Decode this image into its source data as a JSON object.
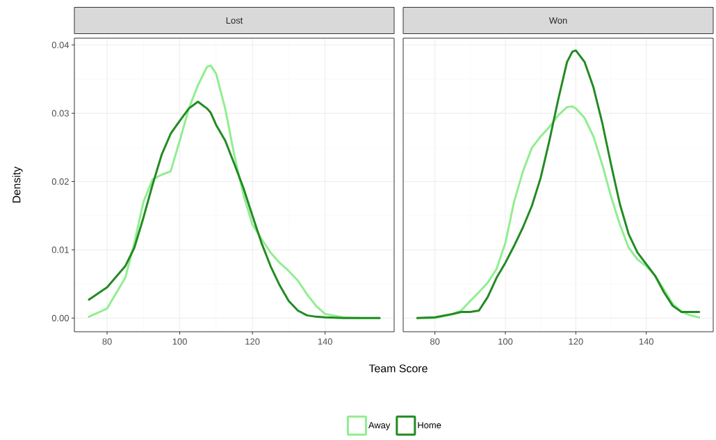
{
  "chart_data": [
    {
      "type": "line",
      "title": "Lost",
      "xlabel": "Team Score",
      "ylabel": "Density",
      "xlim": [
        71,
        159
      ],
      "ylim": [
        -0.002,
        0.041
      ],
      "xticks": [
        80,
        100,
        120,
        140
      ],
      "yticks": [
        {
          "value": 0,
          "label": "0.00"
        },
        {
          "value": 0.01,
          "label": "0.01"
        },
        {
          "value": 0.02,
          "label": "0.02"
        },
        {
          "value": 0.03,
          "label": "0.03"
        },
        {
          "value": 0.04,
          "label": "0.04"
        }
      ],
      "grid": true,
      "legend": "bottom",
      "line_style": "solid",
      "marker": "none",
      "x": [
        75,
        80,
        85,
        87.5,
        90,
        92.5,
        95,
        97.5,
        100,
        102.5,
        105,
        107.5,
        108.5,
        110,
        112.5,
        115,
        117.5,
        120,
        122.5,
        125,
        127.5,
        130,
        132.5,
        135,
        137.5,
        140,
        145,
        150,
        155
      ],
      "series": [
        {
          "name": "Away",
          "color": "#90ee90",
          "values": [
            0.0002,
            0.0014,
            0.0059,
            0.011,
            0.017,
            0.0203,
            0.021,
            0.0215,
            0.026,
            0.0307,
            0.0341,
            0.0368,
            0.037,
            0.0358,
            0.0307,
            0.0239,
            0.0181,
            0.0137,
            0.0116,
            0.0096,
            0.0081,
            0.0069,
            0.0055,
            0.0035,
            0.0018,
            0.0006,
            0.0001,
            0,
            0
          ]
        },
        {
          "name": "Home",
          "color": "#228b22",
          "values": [
            0.0027,
            0.0045,
            0.0076,
            0.0103,
            0.0147,
            0.0195,
            0.0239,
            0.027,
            0.0289,
            0.0307,
            0.0317,
            0.0307,
            0.0301,
            0.0283,
            0.026,
            0.0226,
            0.0191,
            0.015,
            0.011,
            0.0076,
            0.0048,
            0.0025,
            0.0011,
            0.0004,
            0.0002,
            0.0001,
            0,
            0,
            0
          ]
        }
      ]
    },
    {
      "type": "line",
      "title": "Won",
      "xlim": [
        71,
        159
      ],
      "ylim": [
        -0.002,
        0.041
      ],
      "xticks": [
        80,
        100,
        120,
        140
      ],
      "yticks": [
        0,
        0.01,
        0.02,
        0.03,
        0.04
      ],
      "tick_labels": "x",
      "grid": true,
      "line_style": "solid",
      "marker": "none",
      "x": [
        75,
        80,
        85,
        87.5,
        90,
        92.5,
        95,
        97.5,
        100,
        102.5,
        105,
        107.5,
        110,
        112.5,
        115,
        117.5,
        119,
        120,
        122.5,
        125,
        127.5,
        130,
        132.5,
        135,
        137.5,
        140,
        142.5,
        145,
        147.5,
        150,
        152.5,
        155
      ],
      "series": [
        {
          "color": "#90ee90",
          "values": [
            0,
            0,
            0.0006,
            0.0011,
            0.0025,
            0.0038,
            0.0052,
            0.0072,
            0.011,
            0.0171,
            0.0215,
            0.0249,
            0.0266,
            0.028,
            0.0297,
            0.0309,
            0.031,
            0.0307,
            0.0293,
            0.0266,
            0.0225,
            0.0178,
            0.0137,
            0.0103,
            0.0086,
            0.0076,
            0.0062,
            0.0042,
            0.0021,
            0.0009,
            0.0004,
            0.0001
          ]
        },
        {
          "color": "#228b22",
          "values": [
            0,
            0.0001,
            0.0006,
            0.0009,
            0.0009,
            0.0011,
            0.0031,
            0.0059,
            0.0081,
            0.0106,
            0.0133,
            0.0164,
            0.0205,
            0.026,
            0.032,
            0.0375,
            0.039,
            0.0392,
            0.0375,
            0.0338,
            0.0286,
            0.0225,
            0.0167,
            0.0123,
            0.0096,
            0.0079,
            0.0062,
            0.0038,
            0.0018,
            0.0009,
            0.0009,
            0.0009
          ]
        }
      ]
    }
  ]
}
